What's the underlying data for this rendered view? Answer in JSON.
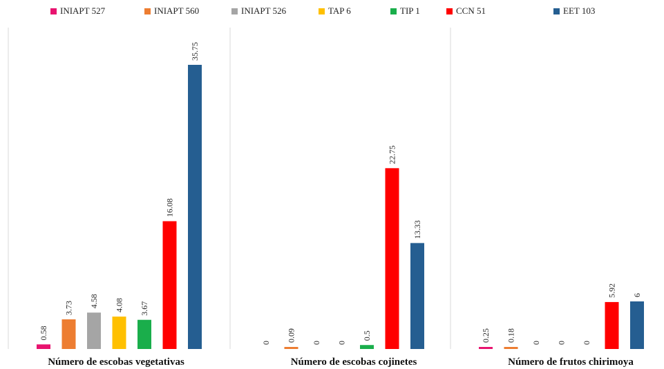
{
  "chart_data": {
    "type": "bar",
    "series": [
      {
        "name": "INIAPT 527",
        "color": "#E8136F"
      },
      {
        "name": "INIAPT 560",
        "color": "#ED7D31"
      },
      {
        "name": "INIAPT 526",
        "color": "#A5A5A5"
      },
      {
        "name": "TAP 6",
        "color": "#FFC000"
      },
      {
        "name": "TIP 1",
        "color": "#1AAE4B"
      },
      {
        "name": "CCN 51",
        "color": "#FF0000"
      },
      {
        "name": "EET 103",
        "color": "#255E91"
      }
    ],
    "panels": [
      {
        "title": "Número de escobas vegetativas",
        "values": [
          0.58,
          3.73,
          4.58,
          4.08,
          3.67,
          16.08,
          35.75
        ],
        "labels": [
          "0.58",
          "3.73",
          "4.58",
          "4.08",
          "3.67",
          "16.08",
          "35.75"
        ]
      },
      {
        "title": "Número de escobas cojinetes",
        "values": [
          0,
          0.09,
          0,
          0,
          0.5,
          22.75,
          13.33
        ],
        "labels": [
          "0",
          "0.09",
          "0",
          "0",
          "0.5",
          "22.75",
          "13.33"
        ]
      },
      {
        "title": "Número de frutos chirimoya",
        "values": [
          0.25,
          0.18,
          0,
          0,
          0,
          5.92,
          6
        ],
        "labels": [
          "0.25",
          "0.18",
          "0",
          "0",
          "0",
          "5.92",
          "6"
        ]
      }
    ],
    "ylim": [
      [
        0,
        38
      ],
      [
        0,
        38
      ],
      [
        0,
        13
      ]
    ],
    "legend_position": "top",
    "grid": false
  }
}
